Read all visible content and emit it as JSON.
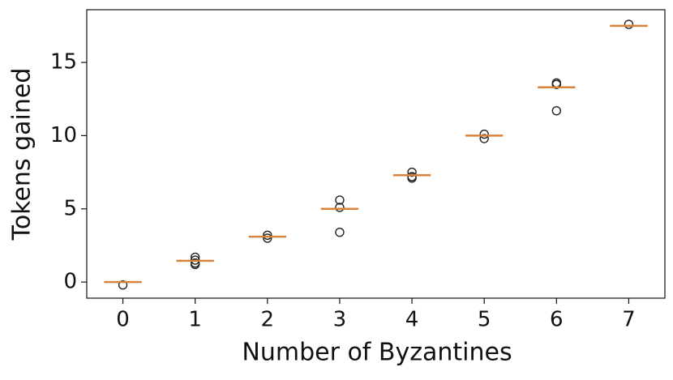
{
  "chart_data": {
    "type": "boxplot",
    "x_label": "Number of Byzantines",
    "y_label": "Tokens gained",
    "categories": [
      "0",
      "1",
      "2",
      "3",
      "4",
      "5",
      "6",
      "7"
    ],
    "boxes": [
      {
        "median": 0,
        "outliers": [
          -0.2
        ]
      },
      {
        "median": 1.45,
        "outliers": [
          1.2,
          1.3,
          1.5,
          1.7
        ]
      },
      {
        "median": 3.1,
        "outliers": [
          3.0,
          3.2
        ]
      },
      {
        "median": 5.0,
        "outliers": [
          3.4,
          5.1,
          5.6
        ]
      },
      {
        "median": 7.3,
        "outliers": [
          7.1,
          7.2,
          7.5
        ]
      },
      {
        "median": 10.0,
        "outliers": [
          9.8,
          10.1
        ]
      },
      {
        "median": 13.3,
        "outliers": [
          11.7,
          13.5,
          13.6
        ]
      },
      {
        "median": 17.5,
        "outliers": [
          17.6
        ]
      }
    ],
    "median_color": "#d9823b",
    "outlier_color": "#222222",
    "ylim": [
      -1.1,
      18.6
    ],
    "yticks": [
      0,
      5,
      10,
      15
    ]
  }
}
